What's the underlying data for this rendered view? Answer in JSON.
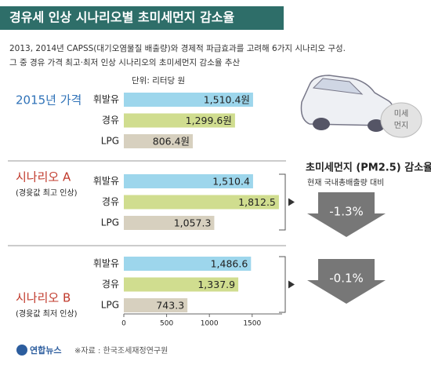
{
  "chart_data": {
    "type": "bar",
    "orientation": "horizontal",
    "title": "경유세 인상 시나리오별 초미세먼지 감소율",
    "subtitle": [
      "2013, 2014년 CAPSS(대기오염물질 배출량)와 경제적 파급효과를 고려해 6가지 시나리오 구성.",
      "그 중 경유 가격 최고·최저 인상 시나리오의 초미세먼지 감소율 추산"
    ],
    "unit": "단위: 리터당 원",
    "categories": [
      "휘발유",
      "경유",
      "LPG"
    ],
    "colors": [
      "#9dd6ec",
      "#d0dd8f",
      "#d7d0bf"
    ],
    "xlim": [
      0,
      1850
    ],
    "xticks": [
      0,
      500,
      1000,
      1500
    ],
    "groups": [
      {
        "name": "2015년 가격",
        "color": "#2f72b8",
        "values": [
          1510.4,
          1299.6,
          806.4
        ],
        "value_labels": [
          "1,510.4원",
          "1,299.6원",
          "806.4원"
        ]
      },
      {
        "name": "시나리오 A",
        "note": "(경윳값 최고 인상)",
        "color": "#c0392b",
        "values": [
          1510.4,
          1812.5,
          1057.3
        ],
        "value_labels": [
          "1,510.4",
          "1,812.5",
          "1,057.3"
        ],
        "reduction": -1.3,
        "reduction_label": "-1.3%"
      },
      {
        "name": "시나리오 B",
        "note": "(경윳값 최저 인상)",
        "color": "#c0392b",
        "values": [
          1486.6,
          1337.9,
          743.3
        ],
        "value_labels": [
          "1,486.6",
          "1,337.9",
          "743.3"
        ],
        "reduction": -0.1,
        "reduction_label": "-0.1%"
      }
    ],
    "reduction_title": "초미세먼지 (PM2.5) 감소율",
    "reduction_note": "현재 국내총배출량 대비",
    "smog_label": [
      "미세",
      "먼지"
    ],
    "logo": "연합뉴스",
    "source": "※자료 : 한국조세재정연구원"
  }
}
